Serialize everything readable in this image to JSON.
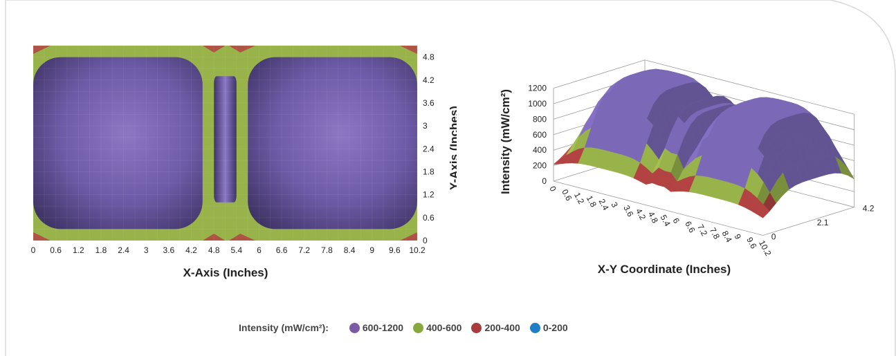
{
  "chart_data": [
    {
      "type": "heatmap",
      "xlabel": "X-Axis (Inches)",
      "ylabel": "Y-Axis (Inches)",
      "x_ticks": [
        "0",
        "0.6",
        "1.2",
        "1.8",
        "2.4",
        "3",
        "3.6",
        "4.2",
        "4.8",
        "5.4",
        "6",
        "6.6",
        "7.2",
        "7.8",
        "8.4",
        "9",
        "9.6",
        "10.2"
      ],
      "y_ticks": [
        "0",
        "0.6",
        "1.2",
        "1.8",
        "2.4",
        "3",
        "3.6",
        "4.2",
        "4.8"
      ],
      "xlim": [
        0,
        10.2
      ],
      "ylim": [
        0,
        5.1
      ],
      "regions": [
        {
          "band": "600-1200",
          "x": [
            0,
            4.5
          ],
          "y": [
            0.3,
            4.8
          ]
        },
        {
          "band": "600-1200",
          "x": [
            4.8,
            5.4
          ],
          "y": [
            1.0,
            4.3
          ]
        },
        {
          "band": "600-1200",
          "x": [
            5.7,
            10.2
          ],
          "y": [
            0.3,
            4.8
          ]
        }
      ]
    },
    {
      "type": "surface",
      "xlabel": "X-Y Coordinate (Inches)",
      "ylabel": "Intensity (mW/cm²)",
      "z_ticks": [
        "0",
        "200",
        "400",
        "600",
        "800",
        "1000",
        "1200"
      ],
      "x_ticks": [
        "0",
        "0.6",
        "1.2",
        "1.8",
        "2.4",
        "3",
        "3.6",
        "4.2",
        "4.8",
        "5.4",
        "6",
        "6.6",
        "7.2",
        "7.8",
        "8.4",
        "9",
        "9.6",
        "10.2"
      ],
      "y_ticks": [
        "0",
        "2.1",
        "4.2"
      ],
      "zlim": [
        0,
        1200
      ]
    }
  ],
  "legend": {
    "title": "Intensity (mW/cm²):",
    "items": [
      {
        "label": "600-1200",
        "color": "#7b5aa6"
      },
      {
        "label": "400-600",
        "color": "#86a83d"
      },
      {
        "label": "200-400",
        "color": "#a83b3b"
      },
      {
        "label": "0-200",
        "color": "#1f7fc4"
      }
    ]
  },
  "colors": {
    "purple": "#7b68b6",
    "purple_dark": "#4e3f7e",
    "purple_light": "#a58fd6",
    "green": "#98b34a",
    "red": "#b34343"
  }
}
